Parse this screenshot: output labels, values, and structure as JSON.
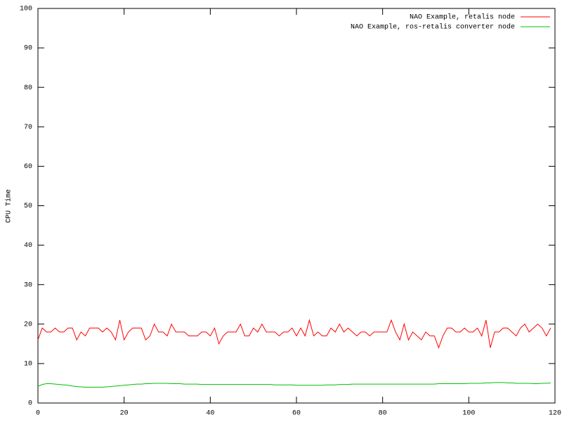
{
  "chart_data": {
    "type": "line",
    "ylabel": "CPU Time",
    "x": [
      0,
      1,
      2,
      3,
      4,
      5,
      6,
      7,
      8,
      9,
      10,
      11,
      12,
      13,
      14,
      15,
      16,
      17,
      18,
      19,
      20,
      21,
      22,
      23,
      24,
      25,
      26,
      27,
      28,
      29,
      30,
      31,
      32,
      33,
      34,
      35,
      36,
      37,
      38,
      39,
      40,
      41,
      42,
      43,
      44,
      45,
      46,
      47,
      48,
      49,
      50,
      51,
      52,
      53,
      54,
      55,
      56,
      57,
      58,
      59,
      60,
      61,
      62,
      63,
      64,
      65,
      66,
      67,
      68,
      69,
      70,
      71,
      72,
      73,
      74,
      75,
      76,
      77,
      78,
      79,
      80,
      81,
      82,
      83,
      84,
      85,
      86,
      87,
      88,
      89,
      90,
      91,
      92,
      93,
      94,
      95,
      96,
      97,
      98,
      99,
      100,
      101,
      102,
      103,
      104,
      105,
      106,
      107,
      108,
      109,
      110,
      111,
      112,
      113,
      114,
      115,
      116,
      117,
      118,
      119
    ],
    "series": [
      {
        "name": "NAO Example, retalis node",
        "color": "#ff0000",
        "values": [
          16,
          19,
          18,
          18,
          19,
          18,
          18,
          19,
          19,
          16,
          18,
          17,
          19,
          19,
          19,
          18,
          19,
          18,
          16,
          21,
          16,
          18,
          19,
          19,
          19,
          16,
          17,
          20,
          18,
          18,
          17,
          20,
          18,
          18,
          18,
          17,
          17,
          17,
          18,
          18,
          17,
          19,
          15,
          17,
          18,
          18,
          18,
          20,
          17,
          17,
          19,
          18,
          20,
          18,
          18,
          18,
          17,
          18,
          18,
          19,
          17,
          19,
          17,
          21,
          17,
          18,
          17,
          17,
          19,
          18,
          20,
          18,
          19,
          18,
          17,
          18,
          18,
          17,
          18,
          18,
          18,
          18,
          21,
          18,
          16,
          20,
          16,
          18,
          17,
          16,
          18,
          17,
          17,
          14,
          17,
          19,
          19,
          18,
          18,
          19,
          18,
          18,
          19,
          17,
          21,
          14,
          18,
          18,
          19,
          19,
          18,
          17,
          19,
          20,
          18,
          19,
          20,
          19,
          17,
          19
        ]
      },
      {
        "name": "NAO Example, ros-retalis converter node",
        "color": "#00c000",
        "values": [
          4.2,
          4.7,
          4.9,
          4.9,
          4.8,
          4.7,
          4.6,
          4.5,
          4.3,
          4.2,
          4.1,
          4.0,
          4.0,
          4.0,
          4.0,
          4.0,
          4.1,
          4.2,
          4.3,
          4.4,
          4.5,
          4.6,
          4.7,
          4.8,
          4.8,
          4.9,
          4.9,
          5.0,
          5.0,
          5.0,
          5.0,
          4.9,
          4.9,
          4.9,
          4.8,
          4.8,
          4.8,
          4.8,
          4.7,
          4.7,
          4.7,
          4.7,
          4.7,
          4.7,
          4.7,
          4.7,
          4.7,
          4.7,
          4.7,
          4.7,
          4.7,
          4.7,
          4.7,
          4.7,
          4.7,
          4.6,
          4.6,
          4.6,
          4.6,
          4.6,
          4.5,
          4.5,
          4.5,
          4.5,
          4.5,
          4.5,
          4.5,
          4.6,
          4.6,
          4.6,
          4.7,
          4.7,
          4.7,
          4.8,
          4.8,
          4.8,
          4.8,
          4.8,
          4.8,
          4.8,
          4.8,
          4.8,
          4.8,
          4.8,
          4.8,
          4.8,
          4.8,
          4.8,
          4.8,
          4.8,
          4.8,
          4.8,
          4.8,
          4.9,
          4.9,
          4.9,
          4.9,
          4.9,
          4.9,
          4.9,
          5.0,
          5.0,
          5.0,
          5.0,
          5.1,
          5.1,
          5.2,
          5.2,
          5.2,
          5.1,
          5.1,
          5.0,
          5.0,
          5.0,
          5.0,
          4.9,
          4.9,
          5.0,
          5.0,
          5.1
        ]
      }
    ],
    "xlim": [
      0,
      120
    ],
    "xticks": [
      0,
      20,
      40,
      60,
      80,
      100,
      120
    ],
    "ylim": [
      0,
      100
    ],
    "yticks": [
      0,
      10,
      20,
      30,
      40,
      50,
      60,
      70,
      80,
      90,
      100
    ],
    "grid": false,
    "legend": "upper right"
  }
}
